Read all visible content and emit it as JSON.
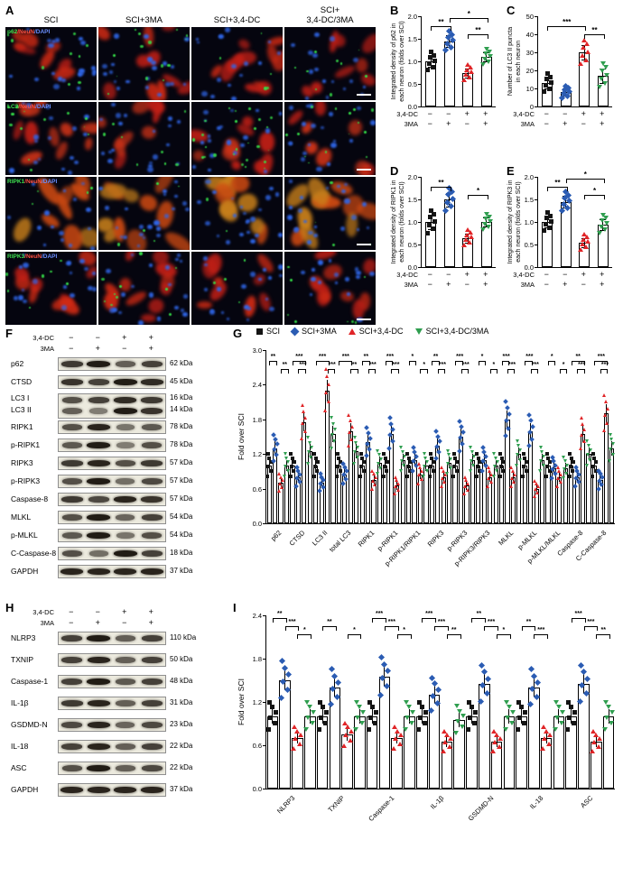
{
  "groups": {
    "names": [
      "SCI",
      "SCI+3MA",
      "SCI+3,4-DC",
      "SCI+3,4-DC/3MA"
    ],
    "colors": [
      "#141414",
      "#2b5cb3",
      "#e02427",
      "#2f9e4f"
    ],
    "shapes": [
      "square",
      "diamond",
      "triangle-up",
      "triangle-down"
    ]
  },
  "treatment_rows": [
    {
      "label": "3,4-DC",
      "signs": [
        "−",
        "−",
        "+",
        "+"
      ]
    },
    {
      "label": "3MA",
      "signs": [
        "−",
        "+",
        "−",
        "+"
      ]
    }
  ],
  "panelA": {
    "letter": "A",
    "columns": [
      "SCI",
      "SCI+3MA",
      "SCI+3,4-DC",
      "SCI+\n3,4-DC/3MA"
    ],
    "rows": [
      {
        "label_parts": [
          [
            "p62",
            "#3fe04f"
          ],
          [
            "/NeuN",
            "#ff5040"
          ],
          [
            "/DAPI",
            "#6b8fff"
          ]
        ]
      },
      {
        "label_parts": [
          [
            "LC3",
            "#3fe04f"
          ],
          [
            "/NeuN",
            "#ff5040"
          ],
          [
            "/DAPI",
            "#6b8fff"
          ]
        ]
      },
      {
        "label_parts": [
          [
            "RIPK1",
            "#3fe04f"
          ],
          [
            "/NeuN",
            "#ff5040"
          ],
          [
            "/DAPI",
            "#6b8fff"
          ]
        ]
      },
      {
        "label_parts": [
          [
            "RIPK3",
            "#3fe04f"
          ],
          [
            "/NeuN",
            "#ff5040"
          ],
          [
            "/DAPI",
            "#6b8fff"
          ]
        ]
      }
    ]
  },
  "chart_data": {
    "B": {
      "type": "bar",
      "letter": "B",
      "ylabel": "Integrated density of p62 in\neach neuron (folds over SCI)",
      "ylim": [
        0,
        2.0
      ],
      "yticks": [
        "0.0",
        "0.5",
        "1.0",
        "1.5",
        "2.0"
      ],
      "values": [
        1.0,
        1.45,
        0.75,
        1.1
      ],
      "sd": [
        0.12,
        0.13,
        0.1,
        0.1
      ],
      "sig": [
        {
          "f": 0,
          "t": 1,
          "l": "**",
          "v": 1
        },
        {
          "f": 1,
          "t": 3,
          "l": "*",
          "v": 2
        },
        {
          "f": 2,
          "t": 3,
          "l": "**",
          "v": 0
        }
      ]
    },
    "C": {
      "type": "bar",
      "letter": "C",
      "ylabel": "Number of LC3 II puncta\nin each neuron",
      "ylim": [
        0,
        50
      ],
      "yticks": [
        "0",
        "10",
        "20",
        "30",
        "40",
        "50"
      ],
      "values": [
        13,
        8,
        30,
        17
      ],
      "sd": [
        3,
        2,
        4,
        4
      ],
      "sig": [
        {
          "f": 0,
          "t": 2,
          "l": "***",
          "v": 1
        },
        {
          "f": 2,
          "t": 3,
          "l": "**",
          "v": 0
        }
      ]
    },
    "D": {
      "type": "bar",
      "letter": "D",
      "ylabel": "Integrated density of RIPK1 in\neach neuron (folds over SCI)",
      "ylim": [
        0,
        2.0
      ],
      "yticks": [
        "0.0",
        "0.5",
        "1.0",
        "1.5",
        "2.0"
      ],
      "values": [
        1.0,
        1.5,
        0.65,
        1.0
      ],
      "sd": [
        0.15,
        0.15,
        0.1,
        0.1
      ],
      "sig": [
        {
          "f": 0,
          "t": 1,
          "l": "**",
          "v": 1
        },
        {
          "f": 2,
          "t": 3,
          "l": "*",
          "v": 0
        }
      ]
    },
    "E": {
      "type": "bar",
      "letter": "E",
      "ylabel": "Integrated density of RIPK3 in\neach neuron (folds over SCI)",
      "ylim": [
        0,
        2.0
      ],
      "yticks": [
        "0.0",
        "0.5",
        "1.0",
        "1.5",
        "2.0"
      ],
      "values": [
        1.0,
        1.45,
        0.55,
        0.95
      ],
      "sd": [
        0.12,
        0.13,
        0.1,
        0.12
      ],
      "sig": [
        {
          "f": 0,
          "t": 1,
          "l": "**",
          "v": 1
        },
        {
          "f": 1,
          "t": 3,
          "l": "*",
          "v": 2
        },
        {
          "f": 2,
          "t": 3,
          "l": "*",
          "v": 0
        }
      ]
    },
    "G": {
      "type": "bar",
      "letter": "G",
      "ylabel": "Fold over SCI",
      "ylim": [
        0,
        3.0
      ],
      "yticks": [
        "0.0",
        "0.6",
        "1.2",
        "1.8",
        "2.4",
        "3.0"
      ],
      "categories": [
        "p62",
        "CTSD",
        "LC3 II",
        "total LC3",
        "RIPK1",
        "p-RIPK1",
        "p-RIPK1/RIPK1",
        "RIPK3",
        "p-RIPK3",
        "p-RIPK3/RIPK3",
        "MLKL",
        "p-MLKL",
        "p-MLKL/MLKL",
        "Caspase-8",
        "C-Caspase-8"
      ],
      "series": [
        {
          "name": "SCI",
          "values": [
            1.0,
            1.0,
            1.0,
            1.0,
            1.0,
            1.0,
            1.0,
            1.0,
            1.0,
            1.0,
            1.0,
            1.0,
            1.0,
            1.0,
            1.0
          ]
        },
        {
          "name": "SCI+3MA",
          "values": [
            1.3,
            0.8,
            0.7,
            0.85,
            1.4,
            1.55,
            1.1,
            1.35,
            1.5,
            1.1,
            1.8,
            1.6,
            0.95,
            0.8,
            0.75
          ]
        },
        {
          "name": "SCI+3,4-DC",
          "values": [
            0.7,
            1.75,
            2.3,
            1.6,
            0.75,
            0.65,
            0.85,
            0.8,
            0.65,
            0.8,
            0.8,
            0.6,
            0.8,
            1.55,
            1.9
          ]
        },
        {
          "name": "SCI+3,4-DC/3MA",
          "values": [
            1.0,
            1.25,
            1.55,
            1.25,
            1.05,
            1.1,
            1.0,
            1.05,
            1.1,
            1.0,
            1.2,
            1.1,
            0.95,
            1.2,
            1.3
          ]
        }
      ],
      "sig": [
        [
          {
            "f": 0,
            "t": 1,
            "l": "**",
            "v": 1
          },
          {
            "f": 2,
            "t": 3,
            "l": "**",
            "v": 0
          }
        ],
        [
          {
            "f": 0,
            "t": 2,
            "l": "***",
            "v": 1
          },
          {
            "f": 1,
            "t": 2,
            "l": "***",
            "v": 0
          }
        ],
        [
          {
            "f": 0,
            "t": 2,
            "l": "***",
            "v": 1
          },
          {
            "f": 2,
            "t": 3,
            "l": "***",
            "v": 0
          }
        ],
        [
          {
            "f": 0,
            "t": 2,
            "l": "***",
            "v": 1
          },
          {
            "f": 2,
            "t": 3,
            "l": "**",
            "v": 0
          }
        ],
        [
          {
            "f": 0,
            "t": 1,
            "l": "**",
            "v": 1
          },
          {
            "f": 1,
            "t": 2,
            "l": "***",
            "v": 0
          }
        ],
        [
          {
            "f": 0,
            "t": 1,
            "l": "***",
            "v": 1
          },
          {
            "f": 1,
            "t": 2,
            "l": "***",
            "v": 0
          }
        ],
        [
          {
            "f": 0,
            "t": 1,
            "l": "*",
            "v": 1
          },
          {
            "f": 2,
            "t": 3,
            "l": "*",
            "v": 0
          }
        ],
        [
          {
            "f": 0,
            "t": 1,
            "l": "**",
            "v": 1
          },
          {
            "f": 1,
            "t": 2,
            "l": "***",
            "v": 0
          }
        ],
        [
          {
            "f": 0,
            "t": 1,
            "l": "***",
            "v": 1
          },
          {
            "f": 1,
            "t": 2,
            "l": "***",
            "v": 0
          }
        ],
        [
          {
            "f": 0,
            "t": 1,
            "l": "*",
            "v": 1
          },
          {
            "f": 2,
            "t": 3,
            "l": "*",
            "v": 0
          }
        ],
        [
          {
            "f": 0,
            "t": 1,
            "l": "***",
            "v": 1
          },
          {
            "f": 1,
            "t": 2,
            "l": "***",
            "v": 0
          }
        ],
        [
          {
            "f": 0,
            "t": 1,
            "l": "***",
            "v": 1
          },
          {
            "f": 1,
            "t": 2,
            "l": "***",
            "v": 0
          }
        ],
        [
          {
            "f": 0,
            "t": 1,
            "l": "*",
            "v": 1
          },
          {
            "f": 2,
            "t": 3,
            "l": "*",
            "v": 0
          }
        ],
        [
          {
            "f": 0,
            "t": 2,
            "l": "**",
            "v": 1
          },
          {
            "f": 1,
            "t": 2,
            "l": "***",
            "v": 0
          }
        ],
        [
          {
            "f": 0,
            "t": 2,
            "l": "***",
            "v": 1
          },
          {
            "f": 1,
            "t": 2,
            "l": "***",
            "v": 0
          }
        ]
      ]
    },
    "I": {
      "type": "bar",
      "letter": "I",
      "ylabel": "Fold over SCI",
      "ylim": [
        0,
        2.4
      ],
      "yticks": [
        "0.0",
        "0.6",
        "1.2",
        "1.8",
        "2.4"
      ],
      "categories": [
        "NLRP3",
        "TXNIP",
        "Caspase-1",
        "IL-1β",
        "GSDMD-N",
        "IL-18",
        "ASC"
      ],
      "series": [
        {
          "name": "SCI",
          "values": [
            1.0,
            1.0,
            1.0,
            1.0,
            1.0,
            1.0,
            1.0
          ]
        },
        {
          "name": "SCI+3MA",
          "values": [
            1.5,
            1.4,
            1.55,
            1.3,
            1.45,
            1.4,
            1.45
          ]
        },
        {
          "name": "SCI+3,4-DC",
          "values": [
            0.7,
            0.75,
            0.7,
            0.65,
            0.65,
            0.7,
            0.65
          ]
        },
        {
          "name": "SCI+3,4-DC/3MA",
          "values": [
            1.0,
            1.0,
            1.0,
            0.95,
            1.0,
            1.0,
            1.0
          ]
        }
      ],
      "sig": [
        [
          {
            "f": 0,
            "t": 1,
            "l": "**",
            "v": 2
          },
          {
            "f": 1,
            "t": 2,
            "l": "***",
            "v": 1
          },
          {
            "f": 2,
            "t": 3,
            "l": "*",
            "v": 0
          }
        ],
        [
          {
            "f": 0,
            "t": 1,
            "l": "**",
            "v": 1
          },
          {
            "f": 2,
            "t": 3,
            "l": "*",
            "v": 0
          }
        ],
        [
          {
            "f": 0,
            "t": 1,
            "l": "***",
            "v": 2
          },
          {
            "f": 1,
            "t": 2,
            "l": "***",
            "v": 1
          },
          {
            "f": 2,
            "t": 3,
            "l": "*",
            "v": 0
          }
        ],
        [
          {
            "f": 0,
            "t": 1,
            "l": "***",
            "v": 2
          },
          {
            "f": 1,
            "t": 2,
            "l": "***",
            "v": 1
          },
          {
            "f": 2,
            "t": 3,
            "l": "**",
            "v": 0
          }
        ],
        [
          {
            "f": 0,
            "t": 1,
            "l": "**",
            "v": 2
          },
          {
            "f": 1,
            "t": 2,
            "l": "***",
            "v": 1
          },
          {
            "f": 2,
            "t": 3,
            "l": "*",
            "v": 0
          }
        ],
        [
          {
            "f": 0,
            "t": 1,
            "l": "**",
            "v": 1
          },
          {
            "f": 1,
            "t": 2,
            "l": "***",
            "v": 0
          }
        ],
        [
          {
            "f": 0,
            "t": 1,
            "l": "***",
            "v": 2
          },
          {
            "f": 1,
            "t": 2,
            "l": "***",
            "v": 1
          },
          {
            "f": 2,
            "t": 3,
            "l": "**",
            "v": 0
          }
        ]
      ]
    }
  },
  "western_blots": {
    "F": {
      "letter": "F",
      "rows": [
        {
          "protein": "p62",
          "kda": "62 kDa",
          "bands": [
            0.75,
            0.95,
            0.5,
            0.7
          ]
        },
        {
          "protein": "CTSD",
          "kda": "45 kDa",
          "bands": [
            0.8,
            0.7,
            0.95,
            0.85
          ]
        },
        {
          "double": true,
          "protein": "LC3 I",
          "protein2": "LC3 II",
          "kda": "16 kDa",
          "kda2": "14 kDa",
          "bands": [
            0.6,
            0.7,
            0.85,
            0.75
          ],
          "bands2": [
            0.5,
            0.3,
            0.95,
            0.8
          ]
        },
        {
          "protein": "RIPK1",
          "kda": "78 kDa",
          "bands": [
            0.6,
            0.9,
            0.35,
            0.55
          ]
        },
        {
          "protein": "p-RIPK1",
          "kda": "78 kDa",
          "bands": [
            0.55,
            0.95,
            0.3,
            0.6
          ]
        },
        {
          "protein": "RIPK3",
          "kda": "57 kDa",
          "bands": [
            0.75,
            0.9,
            0.6,
            0.75
          ]
        },
        {
          "protein": "p-RIPK3",
          "kda": "57 kDa",
          "bands": [
            0.6,
            0.95,
            0.4,
            0.65
          ]
        },
        {
          "protein": "Caspase-8",
          "kda": "57 kDa",
          "bands": [
            0.75,
            0.65,
            0.9,
            0.8
          ]
        },
        {
          "protein": "MLKL",
          "kda": "54 kDa",
          "bands": [
            0.6,
            0.95,
            0.45,
            0.7
          ]
        },
        {
          "protein": "p-MLKL",
          "kda": "54 kDa",
          "bands": [
            0.55,
            0.95,
            0.35,
            0.6
          ]
        },
        {
          "protein": "C-Caspase-8",
          "kda": "18 kDa",
          "bands": [
            0.6,
            0.4,
            0.95,
            0.7
          ]
        },
        {
          "protein": "GAPDH",
          "kda": "37 kDa",
          "bands": [
            0.9,
            0.9,
            0.9,
            0.9
          ]
        }
      ]
    },
    "H": {
      "letter": "H",
      "rows": [
        {
          "protein": "NLRP3",
          "kda": "110 kDa",
          "bands": [
            0.7,
            0.95,
            0.5,
            0.7
          ]
        },
        {
          "protein": "TXNIP",
          "kda": "50 kDa",
          "bands": [
            0.7,
            0.9,
            0.5,
            0.7
          ]
        },
        {
          "protein": "Caspase-1",
          "kda": "48 kDa",
          "bands": [
            0.7,
            0.95,
            0.55,
            0.7
          ]
        },
        {
          "protein": "IL-1β",
          "kda": "31 kDa",
          "bands": [
            0.75,
            0.9,
            0.5,
            0.7
          ]
        },
        {
          "protein": "GSDMD-N",
          "kda": "23 kDa",
          "bands": [
            0.65,
            0.9,
            0.45,
            0.65
          ]
        },
        {
          "protein": "IL-18",
          "kda": "22 kDa",
          "bands": [
            0.7,
            0.9,
            0.5,
            0.7
          ]
        },
        {
          "protein": "ASC",
          "kda": "22 kDa",
          "bands": [
            0.6,
            0.95,
            0.5,
            0.65
          ]
        },
        {
          "protein": "GAPDH",
          "kda": "37 kDa",
          "bands": [
            0.9,
            0.9,
            0.9,
            0.9
          ]
        }
      ]
    }
  }
}
